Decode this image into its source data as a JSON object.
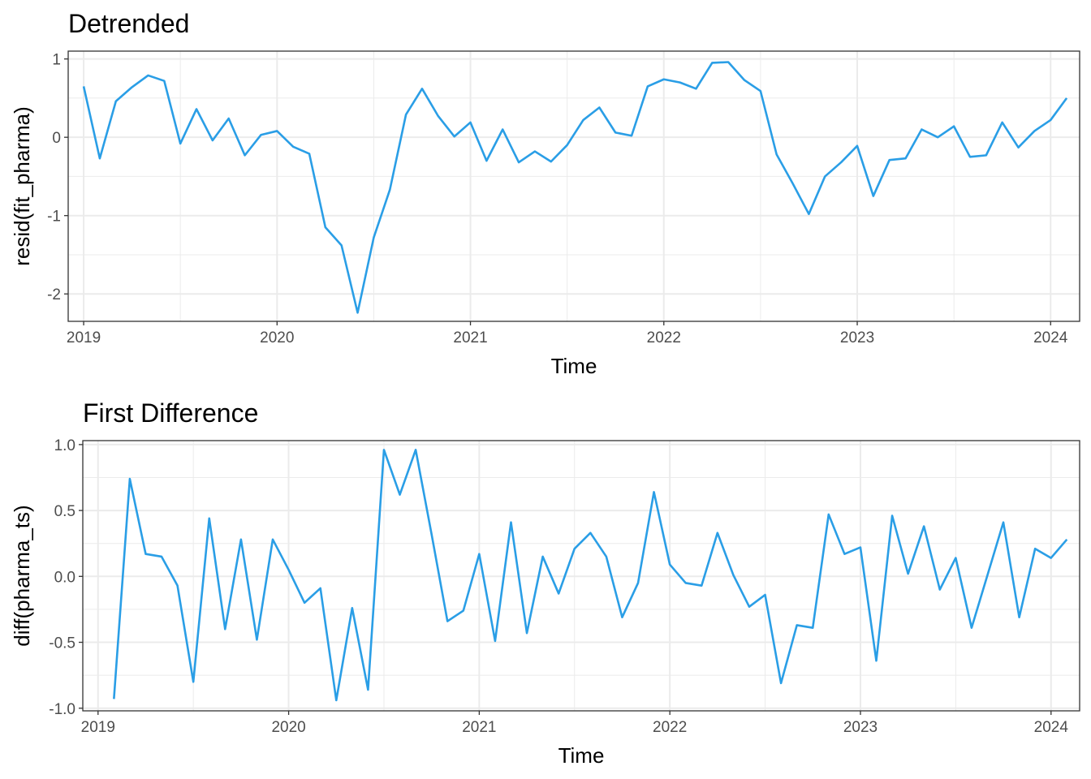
{
  "chart_data": [
    {
      "type": "line",
      "title": "Detrended",
      "xlabel": "Time",
      "ylabel": "resid(fit_pharma)",
      "xlim": [
        2018.92,
        2024.15
      ],
      "ylim": [
        -2.35,
        1.1
      ],
      "x_ticks": [
        2019,
        2020,
        2021,
        2022,
        2023,
        2024
      ],
      "y_ticks": [
        -2,
        -1,
        0,
        1
      ],
      "y_tick_labels": [
        "-2",
        "-1",
        "0",
        "1"
      ],
      "grid": true,
      "x_start": 2019.0,
      "x_step": 0.08333,
      "series": [
        {
          "color": "#2a9ee6",
          "values": [
            0.65,
            -0.27,
            0.46,
            0.64,
            0.79,
            0.72,
            -0.08,
            0.36,
            -0.04,
            0.24,
            -0.23,
            0.03,
            0.08,
            -0.12,
            -0.21,
            -1.15,
            -1.38,
            -2.24,
            -1.28,
            -0.67,
            0.29,
            0.62,
            0.27,
            0.01,
            0.19,
            -0.3,
            0.1,
            -0.32,
            -0.18,
            -0.31,
            -0.1,
            0.22,
            0.38,
            0.06,
            0.02,
            0.65,
            0.74,
            0.7,
            0.62,
            0.95,
            0.96,
            0.73,
            0.59,
            -0.22,
            -0.59,
            -0.98,
            -0.5,
            -0.32,
            -0.11,
            -0.75,
            -0.29,
            -0.27,
            0.1,
            0.0,
            0.14,
            -0.25,
            -0.23,
            0.19,
            -0.13,
            0.08,
            0.22,
            0.5
          ]
        }
      ]
    },
    {
      "type": "line",
      "title": "First Difference",
      "xlabel": "Time",
      "ylabel": "diff(pharma_ts)",
      "xlim": [
        2018.92,
        2024.15
      ],
      "ylim": [
        -1.02,
        1.03
      ],
      "x_ticks": [
        2019,
        2020,
        2021,
        2022,
        2023,
        2024
      ],
      "y_ticks": [
        -1.0,
        -0.5,
        0.0,
        0.5,
        1.0
      ],
      "y_tick_labels": [
        "-1.0",
        "-0.5",
        "0.0",
        "0.5",
        "1.0"
      ],
      "grid": true,
      "x_start": 2019.0833,
      "x_step": 0.08333,
      "series": [
        {
          "color": "#2a9ee6",
          "values": [
            -0.93,
            0.74,
            0.17,
            0.15,
            -0.07,
            -0.8,
            0.44,
            -0.4,
            0.28,
            -0.48,
            0.28,
            0.05,
            -0.2,
            -0.09,
            -0.94,
            -0.24,
            -0.86,
            0.96,
            0.62,
            0.96,
            0.32,
            -0.34,
            -0.26,
            0.17,
            -0.49,
            0.41,
            -0.43,
            0.15,
            -0.13,
            0.21,
            0.33,
            0.15,
            -0.31,
            -0.05,
            0.64,
            0.09,
            -0.05,
            -0.07,
            0.33,
            0.01,
            -0.23,
            -0.14,
            -0.81,
            -0.37,
            -0.39,
            0.47,
            0.17,
            0.22,
            -0.64,
            0.46,
            0.02,
            0.38,
            -0.1,
            0.14,
            -0.39,
            0.01,
            0.41,
            -0.31,
            0.21,
            0.14,
            0.28
          ]
        }
      ]
    }
  ]
}
